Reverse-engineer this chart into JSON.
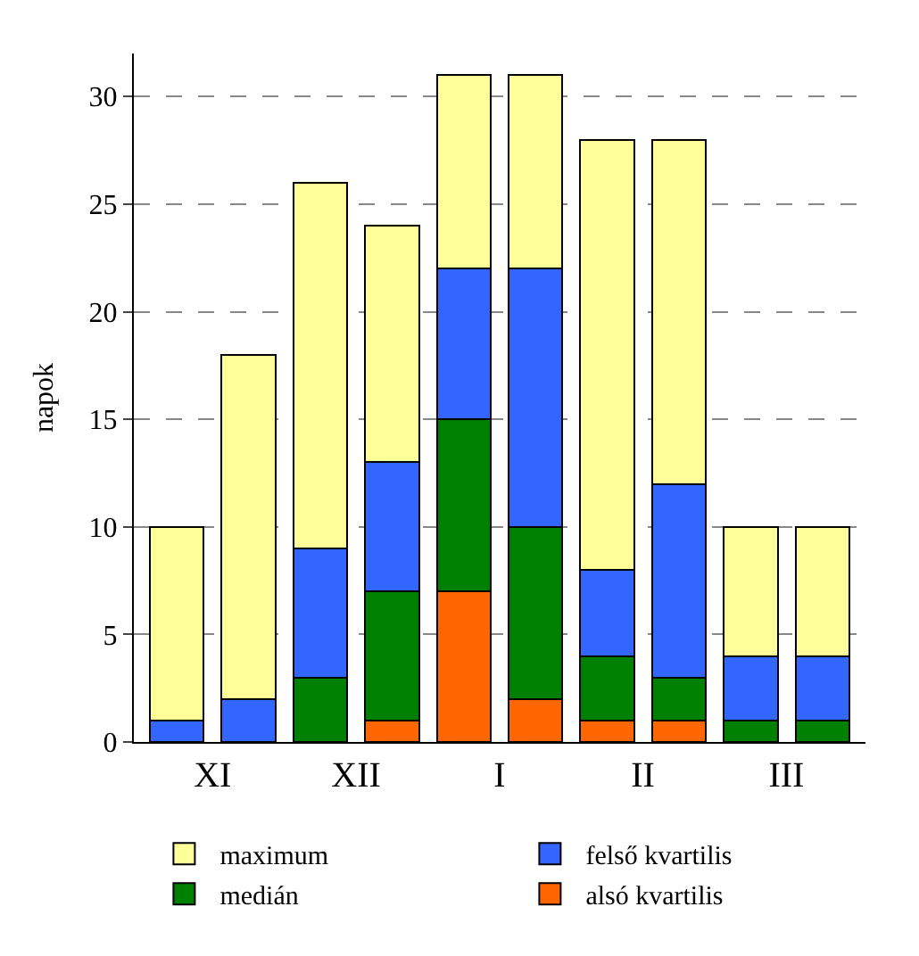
{
  "chart_data": {
    "type": "bar",
    "stacked": true,
    "ylabel": "napok",
    "categories": [
      "XI",
      null,
      "XII",
      null,
      "I",
      null,
      "II",
      null,
      "III",
      null
    ],
    "series": [
      {
        "name": "alsó kvartilis",
        "color": "#ff6600",
        "values": [
          0,
          0,
          0,
          1,
          7,
          2,
          1,
          1,
          0,
          0
        ]
      },
      {
        "name": "medián",
        "color": "#008000",
        "values": [
          0,
          0,
          3,
          6,
          8,
          8,
          3,
          2,
          1,
          1
        ]
      },
      {
        "name": "felső kvartilis",
        "color": "#3366ff",
        "values": [
          1,
          2,
          6,
          6,
          7,
          12,
          4,
          9,
          3,
          3
        ]
      },
      {
        "name": "maximum",
        "color": "#ffff99",
        "values": [
          9,
          16,
          17,
          11,
          9,
          9,
          20,
          16,
          6,
          6
        ]
      }
    ],
    "ylim": [
      0,
      32
    ],
    "yticks": [
      0,
      5,
      10,
      15,
      20,
      25,
      30
    ],
    "grid": "y",
    "legend": "bottom"
  }
}
